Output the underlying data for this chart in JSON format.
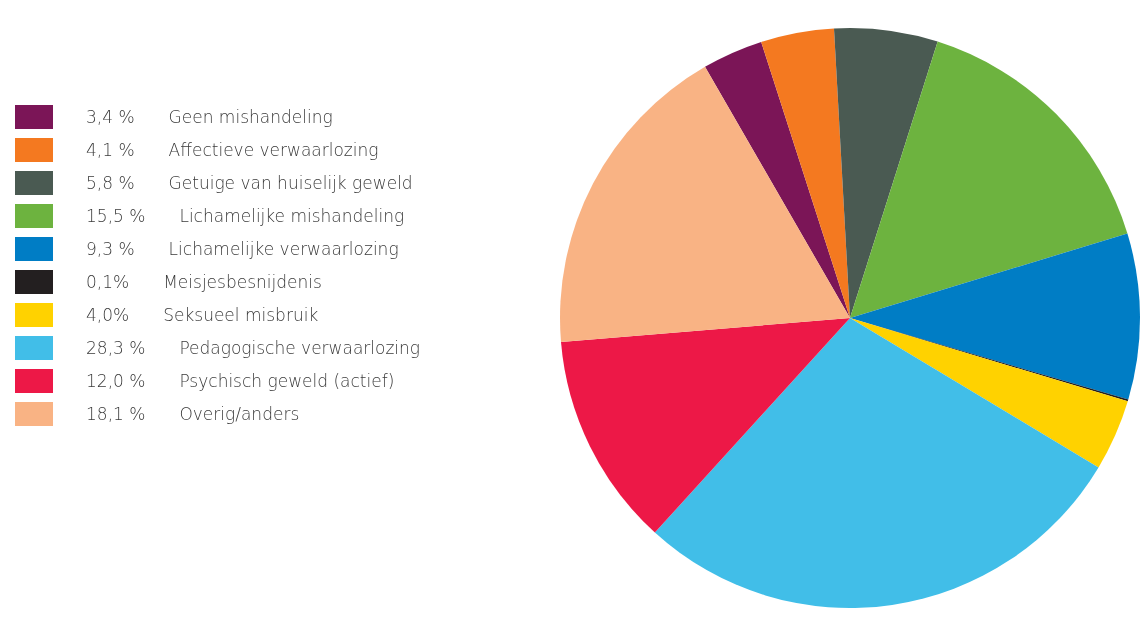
{
  "chart_data": {
    "type": "pie",
    "categories": [
      "Geen mishandeling",
      "Affectieve verwaarlozing",
      "Getuige van huiselijk geweld",
      "Lichamelijke mishandeling",
      "Lichamelijke verwaarlozing",
      "Meisjesbesnijdenis",
      "Seksueel misbruik",
      "Pedagogische verwaarlozing",
      "Psychisch geweld (actief)",
      "Overig/anders"
    ],
    "values": [
      3.4,
      4.1,
      5.8,
      15.5,
      9.3,
      0.1,
      4.0,
      28.3,
      12.0,
      18.1
    ],
    "value_labels": [
      "3,4 %",
      "4,1 %",
      "5,8 %",
      "15,5 %",
      "9,3 %",
      "0,1%",
      "4,0%",
      "28,3 %",
      "12,0 %",
      "18,1 %"
    ],
    "colors": [
      "#7b1557",
      "#f47920",
      "#4a5a52",
      "#6db33f",
      "#007dc5",
      "#231f20",
      "#ffd200",
      "#41bee8",
      "#ed1847",
      "#f9b384"
    ],
    "legend": "left"
  }
}
